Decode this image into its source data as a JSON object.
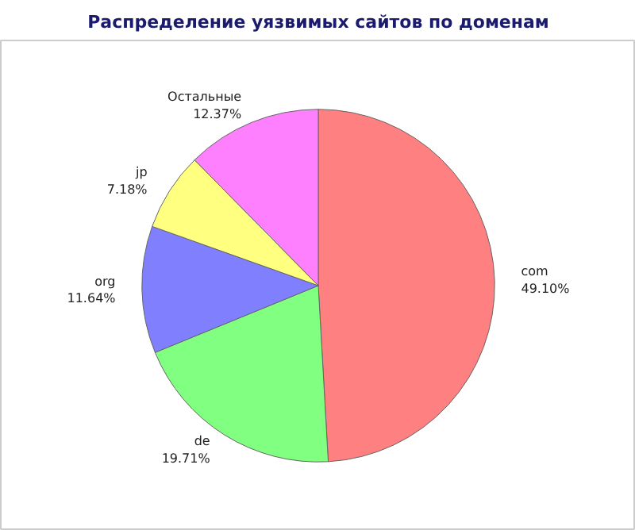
{
  "chart_data": {
    "type": "pie",
    "title": "Распределение уязвимых сайтов по доменам",
    "categories": [
      "com",
      "de",
      "org",
      "jp",
      "Остальные"
    ],
    "values": [
      49.1,
      19.71,
      11.64,
      7.18,
      12.37
    ],
    "colors": [
      "#ff8080",
      "#80ff80",
      "#8080ff",
      "#ffff80",
      "#ff80ff"
    ],
    "value_labels": [
      "49.10%",
      "19.71%",
      "11.64%",
      "7.18%",
      "12.37%"
    ]
  }
}
